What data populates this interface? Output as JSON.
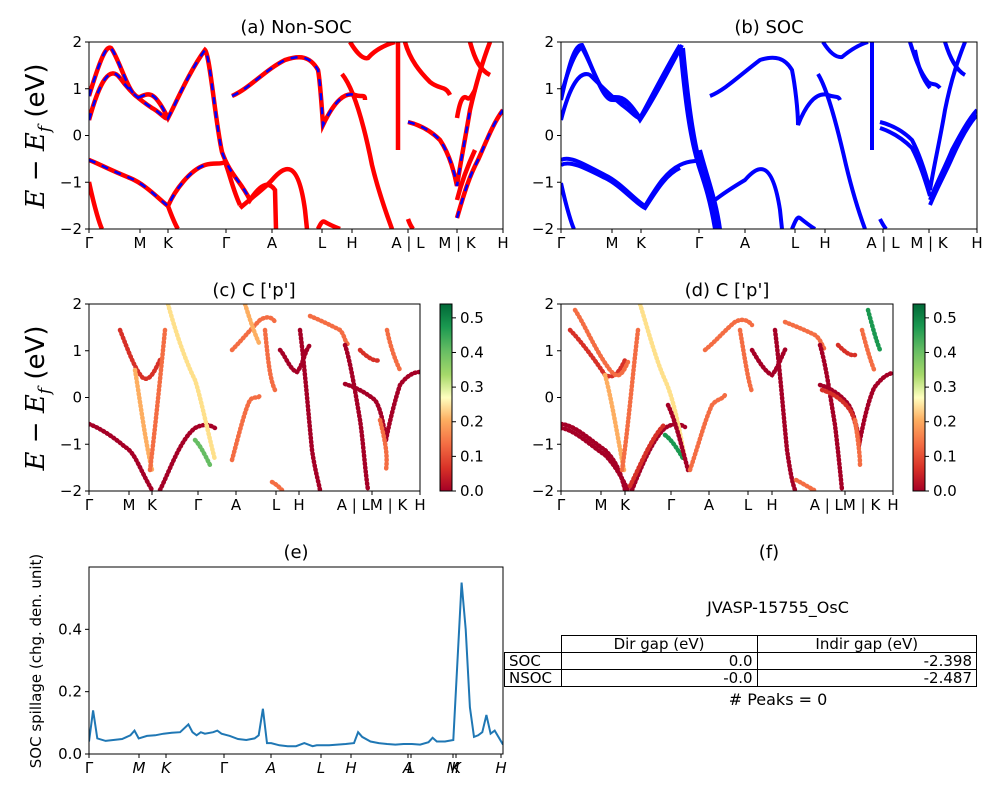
{
  "chart_data": [
    {
      "type": "line",
      "title": "(a) Non-SOC",
      "ylabel": "E − E_f (eV)",
      "ylim": [
        -2,
        2
      ],
      "yticks": [
        "−2",
        "−1",
        "0",
        "1",
        "2"
      ],
      "xticks": [
        "Γ",
        "M",
        "K",
        "Γ",
        "A",
        "L",
        "H",
        "A | L",
        "M | K",
        "H"
      ],
      "series": [
        {
          "color": "#ff0000",
          "style": "solid"
        },
        {
          "color": "#0000ff",
          "style": "dashed"
        }
      ]
    },
    {
      "type": "line",
      "title": "(b) SOC",
      "ylim": [
        -2,
        2
      ],
      "yticks": [
        "−2",
        "−1",
        "0",
        "1",
        "2"
      ],
      "xticks": [
        "Γ",
        "M",
        "K",
        "Γ",
        "A",
        "L",
        "H",
        "A | L",
        "M | K",
        "H"
      ],
      "series": [
        {
          "color": "#0000ff",
          "style": "solid"
        }
      ]
    },
    {
      "type": "scatter",
      "title": "(c)  C ['p']",
      "ylabel": "E − E_f (eV)",
      "ylim": [
        -2,
        2
      ],
      "yticks": [
        "−2",
        "−1",
        "0",
        "1",
        "2"
      ],
      "xticks": [
        "Γ",
        "M",
        "K",
        "Γ",
        "A",
        "L",
        "H",
        "A | LM | K",
        "H"
      ],
      "colorbar": {
        "min": 0.0,
        "max": 0.54,
        "ticks": [
          "0.0",
          "0.1",
          "0.2",
          "0.3",
          "0.4",
          "0.5"
        ],
        "cmap": "RdYlGn"
      }
    },
    {
      "type": "scatter",
      "title": "(d) C ['p']",
      "ylim": [
        -2,
        2
      ],
      "yticks": [
        "−2",
        "−1",
        "0",
        "1",
        "2"
      ],
      "xticks": [
        "Γ",
        "M",
        "K",
        "Γ",
        "A",
        "L",
        "H",
        "A | LM | K",
        "H"
      ],
      "colorbar": {
        "min": 0.0,
        "max": 0.54,
        "ticks": [
          "0.0",
          "0.1",
          "0.2",
          "0.3",
          "0.4",
          "0.5"
        ],
        "cmap": "RdYlGn"
      }
    },
    {
      "type": "line",
      "title": "(e)",
      "ylabel": "SOC spillage (chg. den. unit)",
      "ylim": [
        0,
        0.6
      ],
      "yticks": [
        "0.0",
        "0.2",
        "0.4"
      ],
      "xticks": [
        "Γ",
        "M",
        "K",
        "Γ",
        "A",
        "L",
        "H",
        "A",
        "L",
        "M",
        "K",
        "H"
      ],
      "color": "#1f77b4",
      "x": [
        0,
        0.01,
        0.02,
        0.04,
        0.08,
        0.1,
        0.11,
        0.12,
        0.14,
        0.16,
        0.18,
        0.2,
        0.22,
        0.24,
        0.25,
        0.26,
        0.27,
        0.28,
        0.3,
        0.31,
        0.32,
        0.34,
        0.36,
        0.38,
        0.4,
        0.41,
        0.42,
        0.43,
        0.44,
        0.46,
        0.48,
        0.5,
        0.52,
        0.54,
        0.55,
        0.56,
        0.58,
        0.6,
        0.62,
        0.64,
        0.65,
        0.66,
        0.68,
        0.7,
        0.72,
        0.74,
        0.76,
        0.78,
        0.8,
        0.82,
        0.83,
        0.84,
        0.86,
        0.88,
        0.9,
        0.91,
        0.92,
        0.93,
        0.94,
        0.95,
        0.96,
        0.97,
        0.98,
        1.0
      ],
      "values": [
        0.04,
        0.14,
        0.05,
        0.042,
        0.048,
        0.06,
        0.075,
        0.05,
        0.058,
        0.06,
        0.065,
        0.068,
        0.07,
        0.095,
        0.07,
        0.06,
        0.07,
        0.065,
        0.07,
        0.075,
        0.065,
        0.058,
        0.048,
        0.045,
        0.05,
        0.06,
        0.145,
        0.035,
        0.035,
        0.028,
        0.025,
        0.025,
        0.035,
        0.025,
        0.028,
        0.028,
        0.028,
        0.03,
        0.032,
        0.035,
        0.07,
        0.055,
        0.04,
        0.035,
        0.032,
        0.03,
        0.032,
        0.032,
        0.03,
        0.038,
        0.052,
        0.04,
        0.04,
        0.045,
        0.55,
        0.4,
        0.15,
        0.055,
        0.06,
        0.07,
        0.125,
        0.065,
        0.075,
        0.03
      ]
    }
  ],
  "panel_f": {
    "title": "(f)",
    "material": "JVASP-15755_OsC",
    "columns": [
      "Dir gap (eV)",
      "Indir gap (eV)"
    ],
    "rows": [
      {
        "label": "SOC",
        "dir": "0.0",
        "indir": "-2.398"
      },
      {
        "label": "NSOC",
        "dir": "-0.0",
        "indir": "-2.487"
      }
    ],
    "peaks": "# Peaks = 0"
  }
}
